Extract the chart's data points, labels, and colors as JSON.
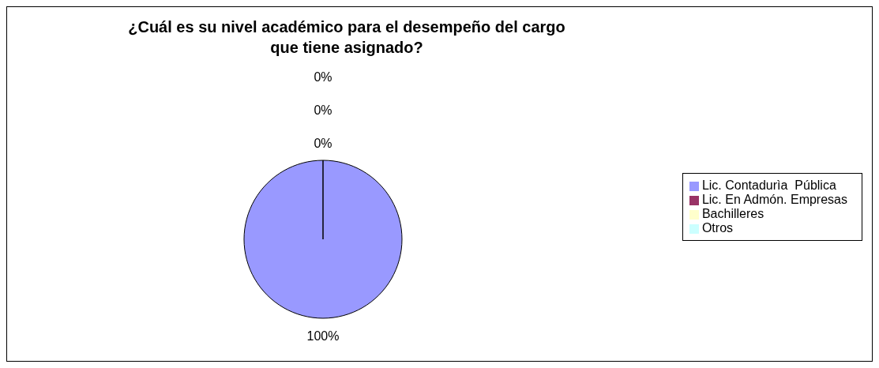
{
  "chart_data": {
    "type": "pie",
    "title": "¿Cuál es su nivel académico para el desempeño del cargo que tiene asignado?",
    "categories": [
      "Lic. Contadurìa  Pública",
      "Lic. En Admón. Empresas",
      "Bachilleres",
      "Otros"
    ],
    "values": [
      100,
      0,
      0,
      0
    ],
    "colors": [
      "#9999ff",
      "#993366",
      "#ffffcc",
      "#ccffff"
    ],
    "value_labels": [
      "100%",
      "0%",
      "0%",
      "0%"
    ],
    "legend": "right"
  }
}
